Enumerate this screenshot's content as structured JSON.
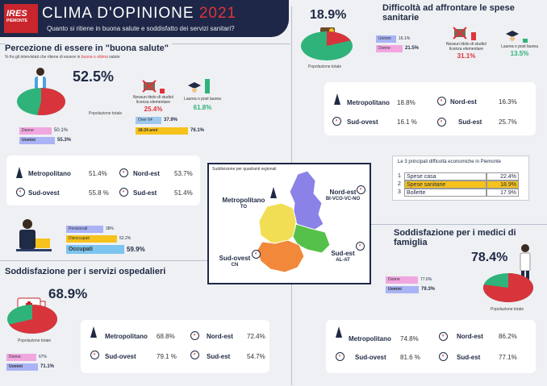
{
  "header": {
    "logo_text": "IRES",
    "logo_sub": "PIEMONTE",
    "title": "CLIMA D'OPINIONE",
    "year": "2021",
    "subtitle": "Quanto si ritiene in buona salute e soddisfatto dei servizi sanitari?"
  },
  "health": {
    "title": "Percezione di essere in \"buona salute\"",
    "note_prefix": "% fra gli intervistati che ritiene di essere in ",
    "note_highlight": "buona o ottima",
    "note_suffix": " salute",
    "total_pct": "52.5%",
    "total_label": "Popolazione totale",
    "edu": [
      {
        "label": "Nessun titolo di studio/ licenza elementare",
        "value": "25.4%"
      },
      {
        "label": "Laurea o post laurea",
        "value": "61.8%"
      }
    ],
    "age": [
      {
        "label": "Over 64",
        "value": "37.9%",
        "level": 37.9
      },
      {
        "label": "18-24 anni",
        "value": "76.1%",
        "level": 76.1
      }
    ],
    "gender": [
      {
        "label": "Donne",
        "value": "50.1%",
        "level": 50.1
      },
      {
        "label": "Uomini",
        "value": "55.3%",
        "level": 55.3
      }
    ],
    "regions": [
      {
        "name": "Metropolitano",
        "value": "51.4%"
      },
      {
        "name": "Nord-est",
        "value": "53.7%"
      },
      {
        "name": "Sud-ovest",
        "value": "55.8 %"
      },
      {
        "name": "Sud-est",
        "value": "51.4%"
      }
    ],
    "work": [
      {
        "label": "Pensionati",
        "value": "38%",
        "level": 38
      },
      {
        "label": "Disoccupati",
        "value": "52.2%",
        "level": 52.2
      },
      {
        "label": "Occupati",
        "value": "59.9%",
        "level": 59.9
      }
    ]
  },
  "spese": {
    "title": "Difficoltà ad affrontare le spese sanitarie",
    "total_pct": "18.9%",
    "total_label": "Popolazione totale",
    "gender": [
      {
        "label": "Uomini",
        "value": "16.1%",
        "level": 16.1
      },
      {
        "label": "Donne",
        "value": "21.5%",
        "level": 21.5
      }
    ],
    "edu": [
      {
        "label": "Nessun titolo di studio/ licenza elementare",
        "value": "31.1%"
      },
      {
        "label": "Laurea o post laurea",
        "value": "13.5%"
      }
    ],
    "regions": [
      {
        "name": "Metropolitano",
        "value": "18.8%"
      },
      {
        "name": "Nord-est",
        "value": "16.3%"
      },
      {
        "name": "Sud-ovest",
        "value": "16.1 %"
      },
      {
        "name": "Sud-est",
        "value": "25.7%"
      }
    ]
  },
  "map": {
    "title": "Suddivisione per quadranti regionali",
    "metro": "Metropolitano",
    "metro_sub": "TO",
    "nordest": "Nord-est",
    "nordest_sub": "BI-VCO-VC-NO",
    "sudovest": "Sud-ovest",
    "sudovest_sub": "CN",
    "sudest": "Sud-est",
    "sudest_sub": "AL-AT",
    "colors": {
      "metro": "#f2de55",
      "nordest": "#8a82e6",
      "sudovest": "#f2883a",
      "sudest": "#55c14a"
    }
  },
  "difficolta": {
    "title": "Le 3 principali difficoltà economiche in Piemonte",
    "rows": [
      {
        "n": "1",
        "label": "Spese casa",
        "value": "22.4%"
      },
      {
        "n": "2",
        "label": "Spese sanitarie",
        "value": "18.9%"
      },
      {
        "n": "3",
        "label": "Bollette",
        "value": "17.9%"
      }
    ]
  },
  "ospedali": {
    "title": "Soddisfazione per i servizi ospedalieri",
    "total_pct": "68.9%",
    "total_label": "Popolazione totale",
    "gender": [
      {
        "label": "Donne",
        "value": "67%",
        "level": 67
      },
      {
        "label": "Uomini",
        "value": "71.1%",
        "level": 71.1
      }
    ],
    "regions": [
      {
        "name": "Metropolitano",
        "value": "68.8%"
      },
      {
        "name": "Nord-est",
        "value": "72.4%"
      },
      {
        "name": "Sud-ovest",
        "value": "79.1 %"
      },
      {
        "name": "Sud-est",
        "value": "54.7%"
      }
    ]
  },
  "medici": {
    "title": "Soddisfazione per i medici di famiglia",
    "total_pct": "78.4%",
    "total_label": "Popolazione totale",
    "gender": [
      {
        "label": "Donne",
        "value": "77.6%",
        "level": 77.6
      },
      {
        "label": "Uomini",
        "value": "79.3%",
        "level": 79.3
      }
    ],
    "regions": [
      {
        "name": "Metropolitano",
        "value": "74.8%"
      },
      {
        "name": "Nord-est",
        "value": "86.2%"
      },
      {
        "name": "Sud-ovest",
        "value": "81.6 %"
      },
      {
        "name": "Sud-est",
        "value": "77.1%"
      }
    ]
  },
  "chart_data": [
    {
      "type": "pie",
      "title": "Percezione di essere in \"buona salute\"",
      "categories": [
        "Popolazione totale"
      ],
      "values": [
        52.5
      ]
    },
    {
      "type": "bar",
      "categories": [
        "Donne",
        "Uomini"
      ],
      "values": [
        50.1,
        55.3
      ]
    },
    {
      "type": "bar",
      "categories": [
        "Over 64",
        "18-24 anni"
      ],
      "values": [
        37.9,
        76.1
      ]
    },
    {
      "type": "bar",
      "categories": [
        "Pensionati",
        "Disoccupati",
        "Occupati"
      ],
      "values": [
        38,
        52.2,
        59.9
      ]
    },
    {
      "type": "pie",
      "title": "Difficoltà ad affrontare le spese sanitarie",
      "categories": [
        "Popolazione totale"
      ],
      "values": [
        18.9
      ]
    },
    {
      "type": "table",
      "title": "Le 3 principali difficoltà economiche in Piemonte",
      "categories": [
        "Spese casa",
        "Spese sanitarie",
        "Bollette"
      ],
      "values": [
        22.4,
        18.9,
        17.9
      ]
    },
    {
      "type": "pie",
      "title": "Soddisfazione per i servizi ospedalieri",
      "categories": [
        "Popolazione totale"
      ],
      "values": [
        68.9
      ]
    },
    {
      "type": "pie",
      "title": "Soddisfazione per i medici di famiglia",
      "categories": [
        "Popolazione totale"
      ],
      "values": [
        78.4
      ]
    }
  ]
}
